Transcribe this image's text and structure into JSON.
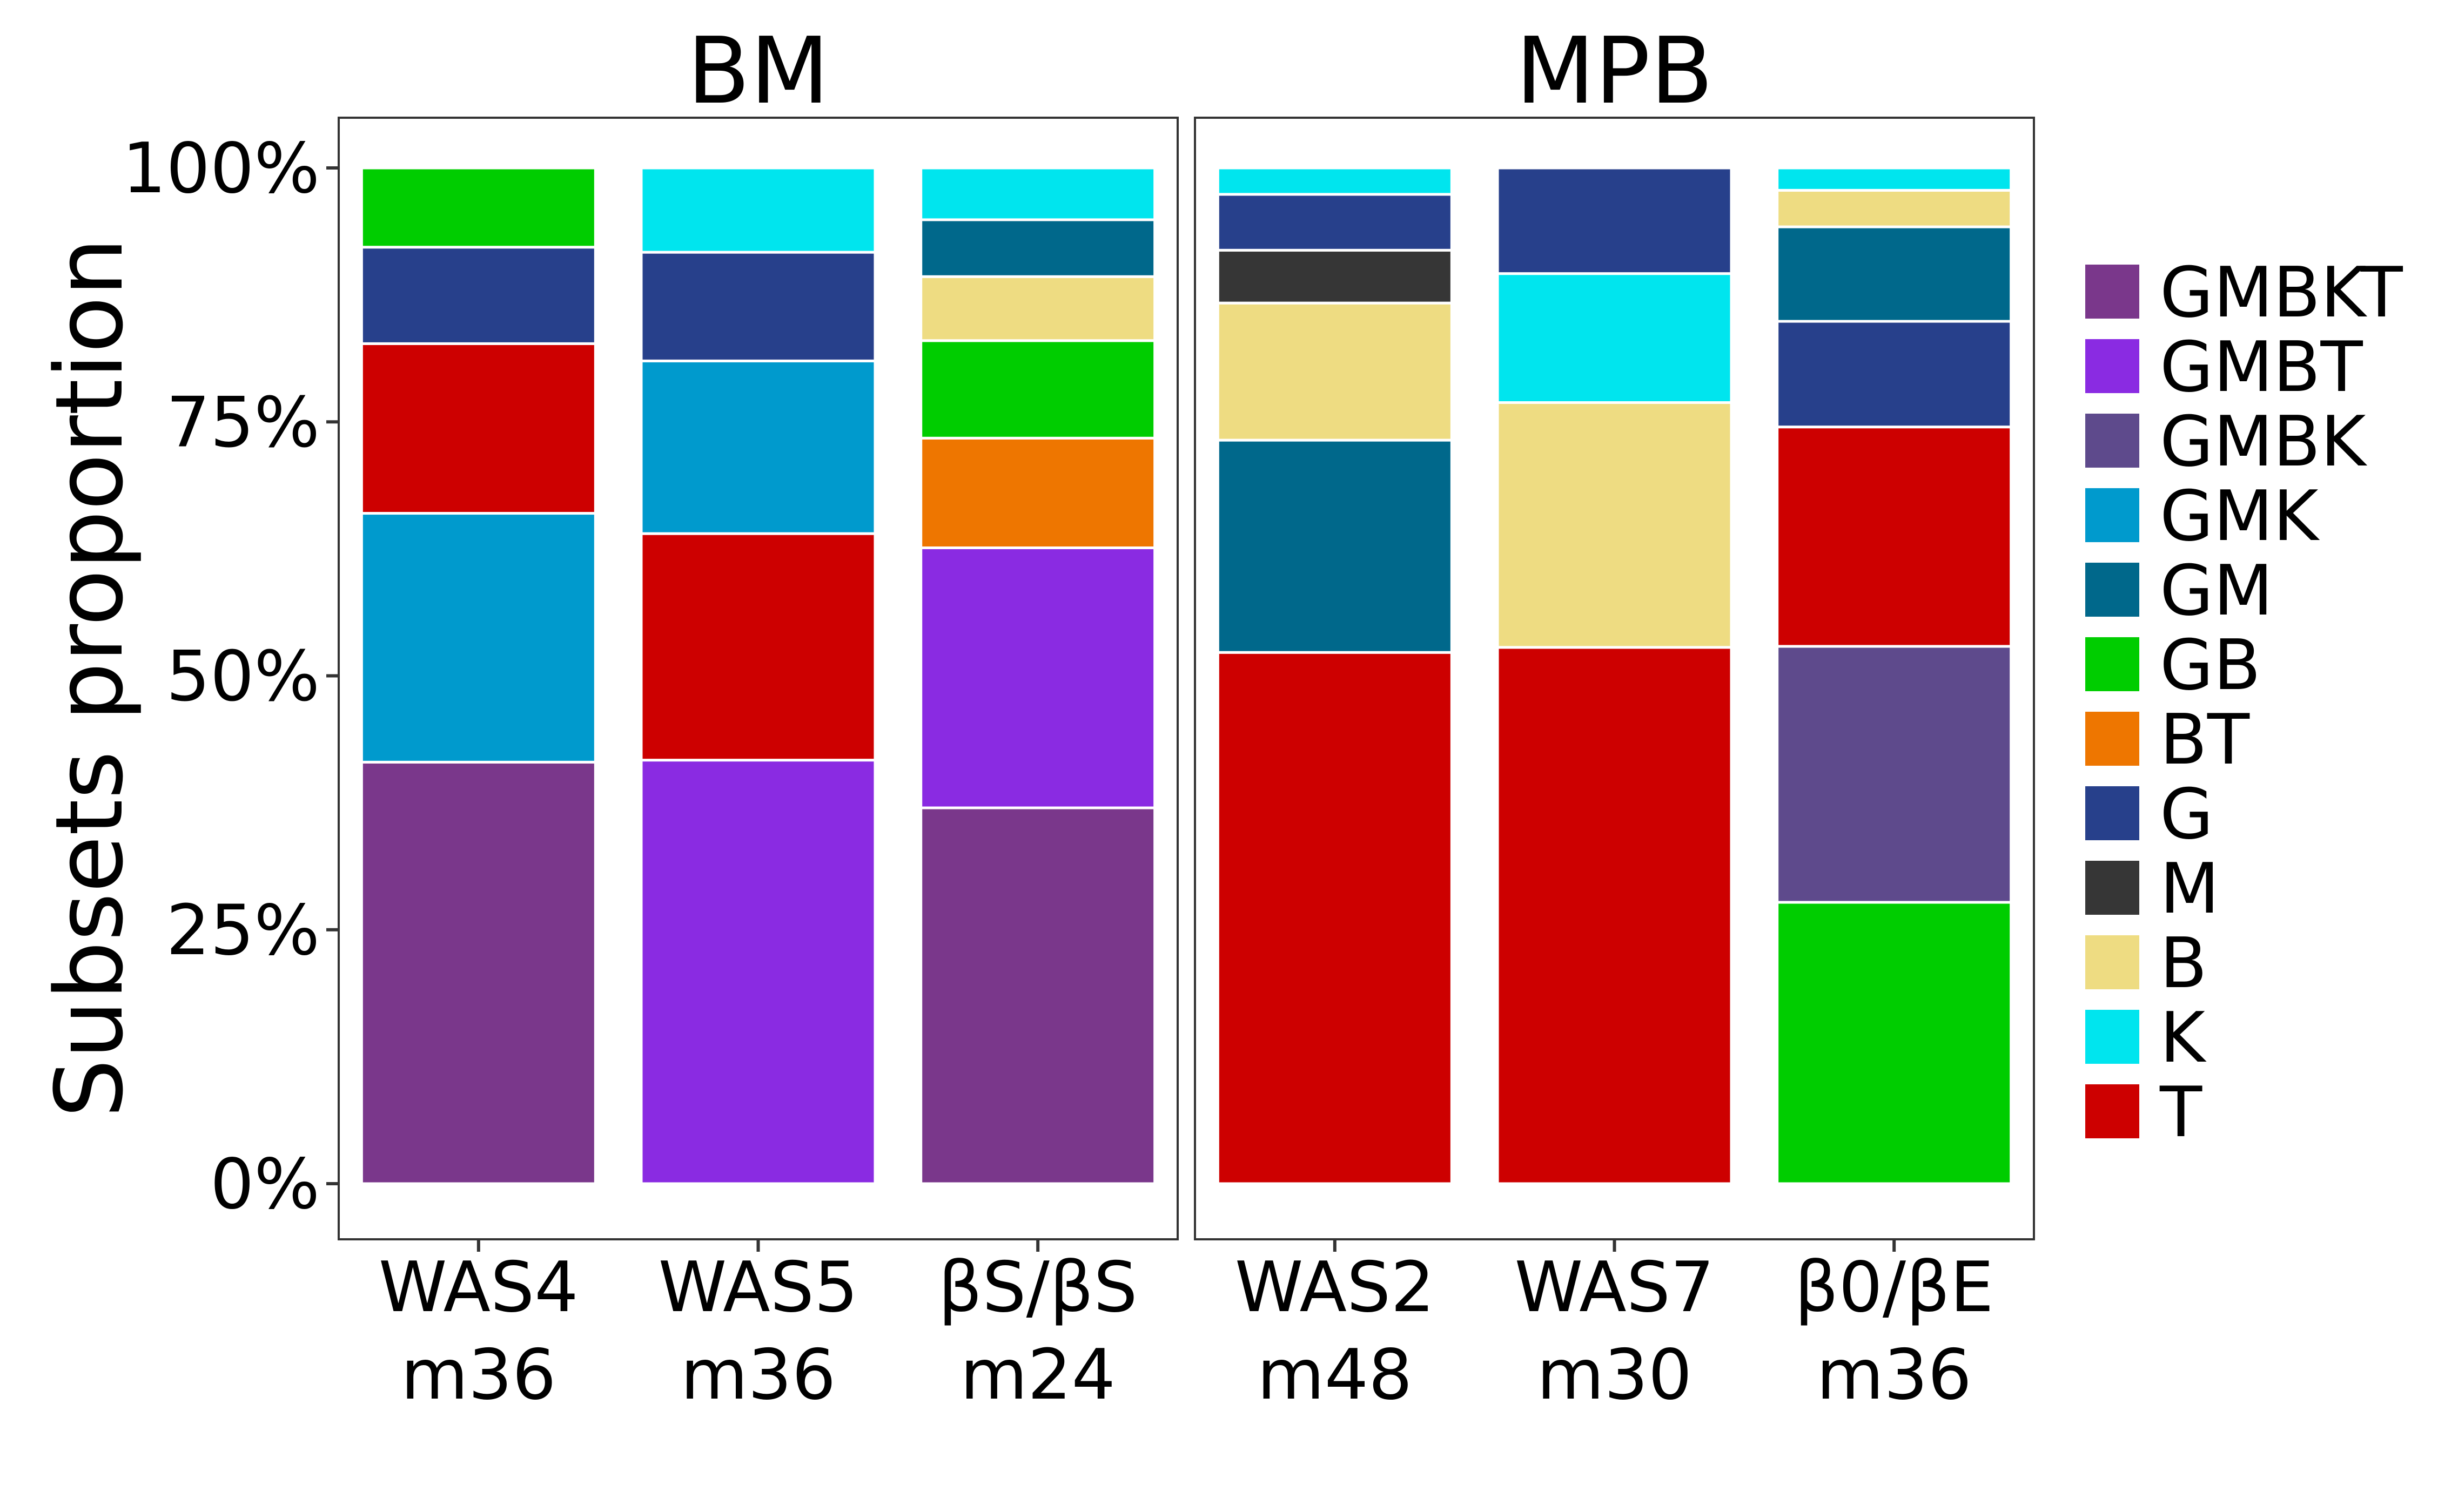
{
  "chart_data": {
    "type": "bar",
    "stacked": true,
    "ylabel": "Subsets proportion",
    "ylim": [
      0,
      1
    ],
    "yticks": [
      0,
      0.25,
      0.5,
      0.75,
      1.0
    ],
    "ytick_labels": [
      "0%",
      "25%",
      "50%",
      "75%",
      "100%"
    ],
    "legend_position": "right",
    "grid": false,
    "legend": [
      {
        "name": "GMBKT",
        "color": "#7A378B"
      },
      {
        "name": "GMBT",
        "color": "#8A2BE2"
      },
      {
        "name": "GMBK",
        "color": "#5E4A8C"
      },
      {
        "name": "GMK",
        "color": "#009ACD"
      },
      {
        "name": "GM",
        "color": "#00688B"
      },
      {
        "name": "GB",
        "color": "#00CD00"
      },
      {
        "name": "BT",
        "color": "#EE7600"
      },
      {
        "name": "G",
        "color": "#27408B"
      },
      {
        "name": "M",
        "color": "#363636"
      },
      {
        "name": "B",
        "color": "#EEDC82"
      },
      {
        "name": "K",
        "color": "#00E5EE"
      },
      {
        "name": "T",
        "color": "#CD0000"
      }
    ],
    "panels": [
      {
        "title": "BM",
        "bars": [
          {
            "line1": "WAS4",
            "line2": "m36",
            "segments": [
              {
                "subset": "GMBKT",
                "value": 0.415
              },
              {
                "subset": "GMK",
                "value": 0.245
              },
              {
                "subset": "T",
                "value": 0.167
              },
              {
                "subset": "G",
                "value": 0.095
              },
              {
                "subset": "GB",
                "value": 0.078
              }
            ]
          },
          {
            "line1": "WAS5",
            "line2": "m36",
            "segments": [
              {
                "subset": "GMBT",
                "value": 0.417
              },
              {
                "subset": "T",
                "value": 0.223
              },
              {
                "subset": "GMK",
                "value": 0.17
              },
              {
                "subset": "G",
                "value": 0.107
              },
              {
                "subset": "K",
                "value": 0.083
              }
            ]
          },
          {
            "line1": "βS/βS",
            "line2": "m24",
            "segments": [
              {
                "subset": "GMBKT",
                "value": 0.37
              },
              {
                "subset": "GMBT",
                "value": 0.256
              },
              {
                "subset": "BT",
                "value": 0.108
              },
              {
                "subset": "GB",
                "value": 0.096
              },
              {
                "subset": "B",
                "value": 0.063
              },
              {
                "subset": "GM",
                "value": 0.056
              },
              {
                "subset": "K",
                "value": 0.051
              }
            ]
          }
        ]
      },
      {
        "title": "MPB",
        "bars": [
          {
            "line1": "WAS2",
            "line2": "m48",
            "segments": [
              {
                "subset": "T",
                "value": 0.523
              },
              {
                "subset": "GM",
                "value": 0.209
              },
              {
                "subset": "B",
                "value": 0.135
              },
              {
                "subset": "M",
                "value": 0.052
              },
              {
                "subset": "G",
                "value": 0.055
              },
              {
                "subset": "K",
                "value": 0.026
              }
            ]
          },
          {
            "line1": "WAS7",
            "line2": "m30",
            "segments": [
              {
                "subset": "T",
                "value": 0.528
              },
              {
                "subset": "B",
                "value": 0.241
              },
              {
                "subset": "K",
                "value": 0.127
              },
              {
                "subset": "G",
                "value": 0.104
              }
            ]
          },
          {
            "line1": "β0/βE",
            "line2": "m36",
            "segments": [
              {
                "subset": "GB",
                "value": 0.277
              },
              {
                "subset": "GMBK",
                "value": 0.252
              },
              {
                "subset": "T",
                "value": 0.216
              },
              {
                "subset": "G",
                "value": 0.104
              },
              {
                "subset": "GM",
                "value": 0.093
              },
              {
                "subset": "B",
                "value": 0.036
              },
              {
                "subset": "K",
                "value": 0.022
              }
            ]
          }
        ]
      }
    ]
  }
}
